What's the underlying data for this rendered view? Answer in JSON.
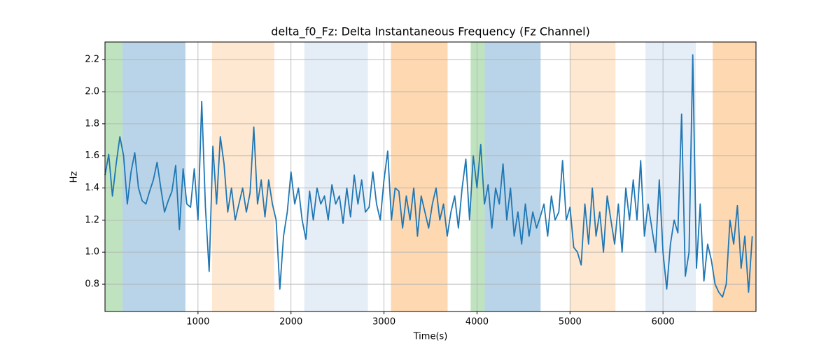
{
  "chart_data": {
    "type": "line",
    "title": "delta_f0_Fz: Delta Instantaneous Frequency (Fz Channel)",
    "x_label": "Time(s)",
    "y_label": "Hz",
    "xlim": [
      0,
      7000
    ],
    "ylim": [
      0.63,
      2.31
    ],
    "xticks": [
      1000,
      2000,
      3000,
      4000,
      5000,
      6000
    ],
    "yticks": [
      0.8,
      {
        "value": 1,
        "label": "1.0"
      },
      1.2,
      1.4,
      1.6,
      1.8,
      {
        "value": 2,
        "label": "2.0"
      },
      2.2
    ],
    "grid": true,
    "spans": [
      {
        "start": 0,
        "end": 188,
        "color": "#bfe2bf"
      },
      {
        "start": 188,
        "end": 865,
        "color": "#b9d4e8"
      },
      {
        "start": 1150,
        "end": 1820,
        "color": "#fee8d1"
      },
      {
        "start": 2143,
        "end": 2827,
        "color": "#e5edf7"
      },
      {
        "start": 3075,
        "end": 3684,
        "color": "#fed8b1"
      },
      {
        "start": 3932,
        "end": 4083,
        "color": "#bfe2bf"
      },
      {
        "start": 4083,
        "end": 4684,
        "color": "#b9d4e8"
      },
      {
        "start": 5000,
        "end": 5489,
        "color": "#fee8d1"
      },
      {
        "start": 5812,
        "end": 6353,
        "color": "#e5edf7"
      },
      {
        "start": 6534,
        "end": 7000,
        "color": "#fed8b1"
      }
    ],
    "x": [
      0,
      40,
      80,
      120,
      160,
      200,
      240,
      280,
      320,
      360,
      400,
      440,
      480,
      520,
      560,
      600,
      640,
      680,
      720,
      760,
      800,
      840,
      880,
      920,
      960,
      1000,
      1040,
      1080,
      1120,
      1160,
      1200,
      1240,
      1280,
      1320,
      1360,
      1400,
      1440,
      1480,
      1520,
      1560,
      1600,
      1640,
      1680,
      1720,
      1760,
      1800,
      1840,
      1880,
      1920,
      1960,
      2000,
      2040,
      2080,
      2120,
      2160,
      2200,
      2240,
      2280,
      2320,
      2360,
      2400,
      2440,
      2480,
      2520,
      2560,
      2600,
      2640,
      2680,
      2720,
      2760,
      2800,
      2840,
      2880,
      2920,
      2960,
      3000,
      3040,
      3080,
      3120,
      3160,
      3200,
      3240,
      3280,
      3320,
      3360,
      3400,
      3440,
      3480,
      3520,
      3560,
      3600,
      3640,
      3680,
      3720,
      3760,
      3800,
      3840,
      3880,
      3920,
      3960,
      4000,
      4040,
      4080,
      4120,
      4160,
      4200,
      4240,
      4280,
      4320,
      4360,
      4400,
      4440,
      4480,
      4520,
      4560,
      4600,
      4640,
      4680,
      4720,
      4760,
      4800,
      4840,
      4880,
      4920,
      4960,
      5000,
      5040,
      5080,
      5120,
      5160,
      5200,
      5240,
      5280,
      5320,
      5360,
      5400,
      5440,
      5480,
      5520,
      5560,
      5600,
      5640,
      5680,
      5720,
      5760,
      5800,
      5840,
      5880,
      5920,
      5960,
      6000,
      6040,
      6080,
      6120,
      6160,
      6200,
      6240,
      6280,
      6320,
      6360,
      6400,
      6440,
      6480,
      6520,
      6560,
      6600,
      6640,
      6680,
      6720,
      6760,
      6800,
      6840,
      6880,
      6920,
      6960
    ],
    "series": [
      {
        "color": "#1f77b4",
        "values": [
          1.48,
          1.61,
          1.35,
          1.55,
          1.72,
          1.6,
          1.3,
          1.5,
          1.62,
          1.4,
          1.32,
          1.3,
          1.38,
          1.45,
          1.56,
          1.4,
          1.25,
          1.32,
          1.38,
          1.54,
          1.14,
          1.52,
          1.3,
          1.28,
          1.52,
          1.2,
          1.94,
          1.28,
          0.88,
          1.66,
          1.3,
          1.72,
          1.55,
          1.25,
          1.4,
          1.2,
          1.3,
          1.4,
          1.25,
          1.37,
          1.78,
          1.3,
          1.45,
          1.22,
          1.45,
          1.3,
          1.2,
          0.77,
          1.1,
          1.25,
          1.5,
          1.3,
          1.4,
          1.2,
          1.08,
          1.38,
          1.2,
          1.4,
          1.3,
          1.35,
          1.2,
          1.42,
          1.3,
          1.35,
          1.18,
          1.4,
          1.22,
          1.48,
          1.3,
          1.45,
          1.25,
          1.28,
          1.5,
          1.3,
          1.2,
          1.45,
          1.63,
          1.2,
          1.4,
          1.38,
          1.15,
          1.35,
          1.2,
          1.4,
          1.1,
          1.35,
          1.25,
          1.15,
          1.3,
          1.4,
          1.2,
          1.3,
          1.1,
          1.25,
          1.35,
          1.15,
          1.4,
          1.58,
          1.2,
          1.6,
          1.4,
          1.67,
          1.3,
          1.42,
          1.15,
          1.4,
          1.3,
          1.55,
          1.2,
          1.4,
          1.1,
          1.25,
          1.05,
          1.3,
          1.1,
          1.25,
          1.15,
          1.22,
          1.3,
          1.1,
          1.35,
          1.2,
          1.25,
          1.57,
          1.2,
          1.28,
          1.03,
          1.0,
          0.92,
          1.3,
          1.05,
          1.4,
          1.1,
          1.25,
          1.0,
          1.35,
          1.2,
          1.05,
          1.3,
          1.0,
          1.4,
          1.2,
          1.45,
          1.2,
          1.57,
          1.1,
          1.3,
          1.15,
          1.0,
          1.45,
          1.0,
          0.77,
          1.05,
          1.2,
          1.12,
          1.86,
          0.85,
          1.0,
          2.23,
          0.9,
          1.3,
          0.82,
          1.05,
          0.95,
          0.8,
          0.75,
          0.72,
          0.8,
          1.2,
          1.05,
          1.29,
          0.9,
          1.1,
          0.75,
          1.1
        ]
      }
    ]
  }
}
